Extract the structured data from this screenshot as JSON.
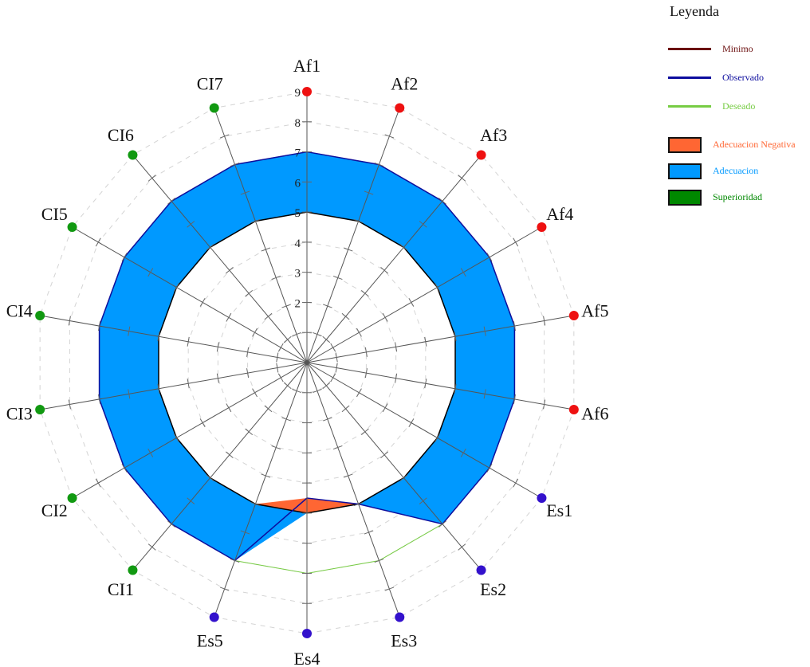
{
  "chart_data": {
    "type": "radar",
    "axes": [
      "Af1",
      "Af2",
      "Af3",
      "Af4",
      "Af5",
      "Af6",
      "Es1",
      "Es2",
      "Es3",
      "Es4",
      "Es5",
      "CI1",
      "CI2",
      "CI3",
      "CI4",
      "CI5",
      "CI6",
      "CI7"
    ],
    "axis_groups": {
      "Af": {
        "axes": [
          "Af1",
          "Af2",
          "Af3",
          "Af4",
          "Af5",
          "Af6"
        ],
        "color": "#ee1111"
      },
      "Es": {
        "axes": [
          "Es1",
          "Es2",
          "Es3",
          "Es4",
          "Es5"
        ],
        "color": "#3311cc"
      },
      "CI": {
        "axes": [
          "CI1",
          "CI2",
          "CI3",
          "CI4",
          "CI5",
          "CI6",
          "CI7"
        ],
        "color": "#119911"
      }
    },
    "rlim": [
      0,
      9
    ],
    "ticks": [
      2,
      3,
      4,
      5,
      6,
      7,
      8,
      9
    ],
    "series": [
      {
        "name": "Minimo",
        "color": "#6b0f0f",
        "values": [
          5,
          5,
          5,
          5,
          5,
          5,
          5,
          5,
          5,
          5,
          5,
          5,
          5,
          5,
          5,
          5,
          5,
          5
        ]
      },
      {
        "name": "Observado",
        "color": "#0d0d9e",
        "values": [
          7,
          7,
          7,
          7,
          7,
          7,
          7,
          7,
          5,
          4.5,
          7,
          7,
          7,
          7,
          7,
          7,
          7,
          7
        ]
      },
      {
        "name": "Deseado",
        "color": "#77cc44",
        "values": [
          7,
          7,
          7,
          7,
          7,
          7,
          7,
          7,
          7,
          7,
          7,
          7,
          7,
          7,
          7,
          7,
          7,
          7
        ]
      }
    ],
    "fills": [
      {
        "name": "Adecuacion Negativa",
        "color": "#ff6633"
      },
      {
        "name": "Adecuacion",
        "color": "#0099ff"
      },
      {
        "name": "Superioridad",
        "color": "#008800"
      }
    ],
    "grid": true,
    "legend": {
      "title": "Leyenda",
      "placement": "top-right",
      "lines": [
        {
          "label": "Minimo",
          "color": "#6b0f0f"
        },
        {
          "label": "Observado",
          "color": "#0d0d9e"
        },
        {
          "label": "Deseado",
          "color": "#77cc44"
        }
      ],
      "boxes": [
        {
          "label": "Adecuacion Negativa",
          "color": "#ff6633"
        },
        {
          "label": "Adecuacion",
          "color": "#0099ff"
        },
        {
          "label": "Superioridad",
          "color": "#008800"
        }
      ]
    }
  }
}
